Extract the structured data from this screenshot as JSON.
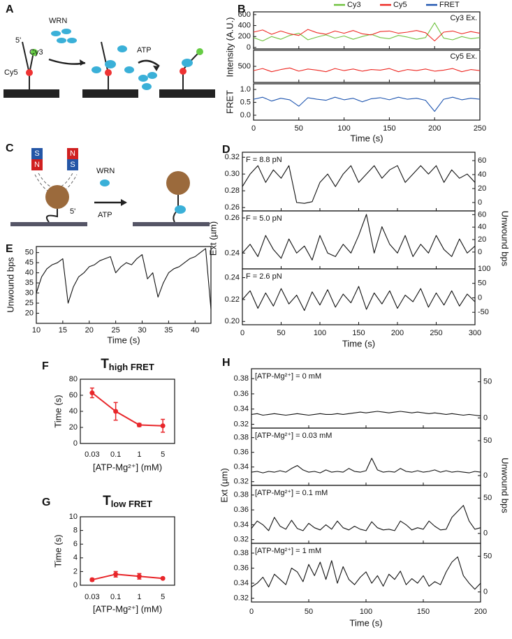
{
  "panel_labels": [
    "A",
    "B",
    "C",
    "D",
    "E",
    "F",
    "G",
    "H"
  ],
  "diagram_a": {
    "five_prime": "5'",
    "cy3": "Cy3",
    "cy5": "Cy5",
    "wrn": "WRN",
    "atp": "ATP"
  },
  "diagram_c": {
    "s1": "S",
    "n1": "N",
    "n2": "N",
    "s2": "S",
    "wrn": "WRN",
    "atp": "ATP",
    "five_prime": "5'"
  },
  "chart_data": [
    {
      "type": "line",
      "xlabel": "Time (s)",
      "x": [
        0,
        10,
        20,
        30,
        40,
        50,
        60,
        70,
        80,
        90,
        100,
        110,
        120,
        130,
        140,
        150,
        160,
        170,
        180,
        190,
        200,
        210,
        220,
        230,
        240,
        250
      ],
      "xlim": [
        0,
        250
      ],
      "xticks": [
        0,
        50,
        100,
        150,
        200,
        250
      ],
      "panels": [
        {
          "ylabel": "Intensity (A.U.)",
          "annotation": "Cy3 Ex.",
          "ylim": [
            -26,
            650
          ],
          "yticks": [
            0,
            200,
            400,
            600
          ],
          "series": [
            {
              "name": "Cy3",
              "color": "#6fc23e",
              "values": [
                180,
                120,
                200,
                150,
                220,
                260,
                140,
                190,
                230,
                170,
                210,
                150,
                200,
                240,
                180,
                160,
                220,
                190,
                150,
                180,
                450,
                170,
                140,
                200,
                160,
                180
              ]
            },
            {
              "name": "Cy5",
              "color": "#ee2a24",
              "values": [
                280,
                320,
                240,
                300,
                250,
                220,
                330,
                270,
                240,
                300,
                260,
                310,
                250,
                230,
                290,
                300,
                260,
                280,
                310,
                270,
                120,
                280,
                300,
                250,
                290,
                260
              ]
            }
          ]
        },
        {
          "annotation": "Cy5 Ex.",
          "ylim": [
            200,
            800
          ],
          "yticks": [
            500
          ],
          "series": [
            {
              "color": "#ee2a24",
              "values": [
                420,
                460,
                400,
                440,
                470,
                410,
                450,
                430,
                400,
                460,
                420,
                450,
                410,
                440,
                430,
                460,
                400,
                440,
                420,
                450,
                410,
                430,
                460,
                400,
                440,
                420
              ]
            }
          ]
        },
        {
          "ylabel": "FRET",
          "ylim": [
            -0.19,
            1.22
          ],
          "yticks": [
            {
              "value": 0,
              "label": "0.0"
            },
            0.5,
            {
              "value": 1,
              "label": "1.0"
            }
          ],
          "series": [
            {
              "name": "FRET",
              "color": "#2056b0",
              "values": [
                0.62,
                0.7,
                0.55,
                0.66,
                0.6,
                0.35,
                0.68,
                0.62,
                0.58,
                0.7,
                0.6,
                0.66,
                0.52,
                0.64,
                0.68,
                0.6,
                0.7,
                0.62,
                0.66,
                0.58,
                0.15,
                0.62,
                0.7,
                0.6,
                0.66,
                0.62
              ]
            }
          ]
        }
      ]
    },
    {
      "type": "line",
      "xlabel": "Time (s)",
      "ylabel": "Ext (µm)",
      "y2label": "Unwound bps",
      "x": [
        0,
        10,
        20,
        30,
        40,
        50,
        60,
        70,
        80,
        90,
        100,
        110,
        120,
        130,
        140,
        150,
        160,
        170,
        180,
        190,
        200,
        210,
        220,
        230,
        240,
        250,
        260,
        270,
        280,
        290,
        300
      ],
      "xlim": [
        0,
        300
      ],
      "xticks": [
        0,
        50,
        100,
        150,
        200,
        250,
        300
      ],
      "panels": [
        {
          "annotation": "F = 8.8 pN",
          "ylim": [
            0.256,
            0.326
          ],
          "yticks": [
            0.26,
            0.28,
            {
              "value": 0.3,
              "label": "0.30"
            },
            0.32
          ],
          "y2lim": [
            -12,
            72
          ],
          "y2ticks": [
            0,
            20,
            40,
            60
          ],
          "series": [
            {
              "color": "#111111",
              "values": [
                0.285,
                0.3,
                0.31,
                0.29,
                0.305,
                0.295,
                0.31,
                0.266,
                0.265,
                0.267,
                0.29,
                0.3,
                0.285,
                0.3,
                0.31,
                0.29,
                0.3,
                0.31,
                0.295,
                0.305,
                0.31,
                0.29,
                0.3,
                0.31,
                0.3,
                0.31,
                0.29,
                0.305,
                0.295,
                0.3,
                0.29
              ]
            }
          ]
        },
        {
          "annotation": "F = 5.0 pN",
          "ylim": [
            0.231,
            0.264
          ],
          "yticks": [
            0.24,
            0.26
          ],
          "y2lim": [
            -27,
            66
          ],
          "y2ticks": [
            0,
            20,
            40,
            60
          ],
          "series": [
            {
              "color": "#111111",
              "values": [
                0.24,
                0.245,
                0.238,
                0.25,
                0.242,
                0.237,
                0.248,
                0.24,
                0.244,
                0.236,
                0.25,
                0.24,
                0.238,
                0.245,
                0.24,
                0.25,
                0.262,
                0.24,
                0.255,
                0.245,
                0.24,
                0.25,
                0.238,
                0.245,
                0.24,
                0.25,
                0.242,
                0.238,
                0.248,
                0.24,
                0.244
              ]
            }
          ]
        },
        {
          "annotation": "F = 2.6 pN",
          "ylim": [
            0.197,
            0.248
          ],
          "yticks": [
            {
              "value": 0.2,
              "label": "0.20"
            },
            0.22,
            0.24
          ],
          "y2lim": [
            -93,
            100
          ],
          "y2ticks": [
            -50,
            0,
            50,
            100
          ],
          "series": [
            {
              "color": "#111111",
              "values": [
                0.22,
                0.228,
                0.212,
                0.226,
                0.214,
                0.23,
                0.216,
                0.224,
                0.21,
                0.227,
                0.215,
                0.229,
                0.213,
                0.225,
                0.217,
                0.232,
                0.211,
                0.226,
                0.216,
                0.228,
                0.212,
                0.224,
                0.218,
                0.23,
                0.213,
                0.226,
                0.215,
                0.228,
                0.214,
                0.225,
                0.218
              ]
            }
          ]
        }
      ]
    },
    {
      "type": "line",
      "xlabel": "Time (s)",
      "ylabel": "Unwound bps",
      "x": [
        10,
        11,
        12,
        13,
        14,
        15,
        16,
        17,
        18,
        19,
        20,
        21,
        22,
        23,
        24,
        25,
        26,
        27,
        28,
        29,
        30,
        31,
        32,
        33,
        34,
        35,
        36,
        37,
        38,
        39,
        40,
        41,
        42,
        43
      ],
      "xlim": [
        10,
        43
      ],
      "xticks": [
        10,
        15,
        20,
        25,
        30,
        35,
        40
      ],
      "panels": [
        {
          "ylim": [
            15,
            53
          ],
          "yticks": [
            20,
            25,
            30,
            35,
            40,
            45,
            50
          ],
          "series": [
            {
              "color": "#111111",
              "values": [
                30,
                38,
                42,
                44,
                45,
                47,
                25,
                33,
                38,
                40,
                43,
                44,
                46,
                47,
                48,
                40,
                43,
                45,
                44,
                47,
                49,
                37,
                40,
                28,
                35,
                40,
                42,
                43,
                45,
                47,
                48,
                50,
                52,
                22
              ]
            }
          ]
        }
      ]
    },
    {
      "type": "line",
      "title": "T",
      "title_sub": "high FRET",
      "xlabel": "[ATP-Mg²⁺] (mM)",
      "ylabel": "Time (s)",
      "categories": [
        "0.03",
        "0.1",
        "1",
        "5"
      ],
      "panels": [
        {
          "ylim": [
            0,
            80
          ],
          "yticks": [
            0,
            20,
            40,
            60,
            80
          ],
          "series": [
            {
              "color": "#e8262a",
              "values": [
                63,
                40,
                23,
                22
              ],
              "errors": [
                6,
                11,
                2,
                8
              ]
            }
          ]
        }
      ]
    },
    {
      "type": "line",
      "title": "T",
      "title_sub": "low FRET",
      "xlabel": "[ATP-Mg²⁺] (mM)",
      "ylabel": "Time (s)",
      "categories": [
        "0.03",
        "0.1",
        "1",
        "5"
      ],
      "panels": [
        {
          "ylim": [
            0,
            10
          ],
          "yticks": [
            0,
            2,
            4,
            6,
            8,
            10
          ],
          "series": [
            {
              "color": "#e8262a",
              "values": [
                0.8,
                1.6,
                1.3,
                1.0
              ],
              "errors": [
                0.2,
                0.4,
                0.4,
                0.1
              ]
            }
          ]
        }
      ]
    },
    {
      "type": "line",
      "xlabel": "Time (s)",
      "ylabel": "Ext (µm)",
      "y2label": "Unwound bps",
      "x": [
        0,
        5,
        10,
        15,
        20,
        25,
        30,
        35,
        40,
        45,
        50,
        55,
        60,
        65,
        70,
        75,
        80,
        85,
        90,
        95,
        100,
        105,
        110,
        115,
        120,
        125,
        130,
        135,
        140,
        145,
        150,
        155,
        160,
        165,
        170,
        175,
        180,
        185,
        190,
        195,
        200
      ],
      "xlim": [
        0,
        200
      ],
      "xticks": [
        0,
        50,
        100,
        150,
        200
      ],
      "panels": [
        {
          "annotation": "[ATP-Mg²⁺] = 0 mM",
          "ylim": [
            0.315,
            0.393
          ],
          "yticks": [
            0.32,
            0.34,
            0.36,
            0.38
          ],
          "y2lim": [
            -14,
            68
          ],
          "y2ticks": [
            0,
            50
          ],
          "series": [
            {
              "color": "#111111",
              "values": [
                0.333,
                0.334,
                0.332,
                0.333,
                0.334,
                0.333,
                0.332,
                0.333,
                0.334,
                0.333,
                0.332,
                0.333,
                0.334,
                0.333,
                0.333,
                0.334,
                0.333,
                0.334,
                0.335,
                0.336,
                0.335,
                0.336,
                0.337,
                0.336,
                0.335,
                0.336,
                0.337,
                0.336,
                0.335,
                0.336,
                0.335,
                0.334,
                0.335,
                0.334,
                0.333,
                0.334,
                0.333,
                0.332,
                0.333,
                0.332,
                0.331
              ]
            }
          ]
        },
        {
          "annotation": "[ATP-Mg²⁺] = 0.03 mM",
          "ylim": [
            0.315,
            0.393
          ],
          "yticks": [
            0.32,
            0.34,
            0.36,
            0.38
          ],
          "y2lim": [
            -14,
            68
          ],
          "y2ticks": [
            0,
            50
          ],
          "series": [
            {
              "color": "#111111",
              "values": [
                0.333,
                0.334,
                0.332,
                0.334,
                0.333,
                0.335,
                0.333,
                0.338,
                0.342,
                0.336,
                0.333,
                0.334,
                0.332,
                0.336,
                0.333,
                0.334,
                0.333,
                0.338,
                0.334,
                0.333,
                0.335,
                0.352,
                0.336,
                0.333,
                0.334,
                0.333,
                0.338,
                0.334,
                0.333,
                0.335,
                0.333,
                0.334,
                0.336,
                0.333,
                0.335,
                0.333,
                0.334,
                0.333,
                0.332,
                0.334,
                0.333
              ]
            }
          ]
        },
        {
          "annotation": "[ATP-Mg²⁺] = 0.1 mM",
          "ylim": [
            0.315,
            0.393
          ],
          "yticks": [
            0.32,
            0.34,
            0.36,
            0.38
          ],
          "y2lim": [
            -14,
            68
          ],
          "y2ticks": [
            0,
            50
          ],
          "series": [
            {
              "color": "#111111",
              "values": [
                0.335,
                0.345,
                0.34,
                0.332,
                0.35,
                0.338,
                0.334,
                0.346,
                0.335,
                0.332,
                0.342,
                0.336,
                0.333,
                0.34,
                0.334,
                0.345,
                0.336,
                0.333,
                0.338,
                0.334,
                0.332,
                0.344,
                0.336,
                0.333,
                0.334,
                0.332,
                0.345,
                0.34,
                0.333,
                0.336,
                0.334,
                0.345,
                0.338,
                0.333,
                0.334,
                0.35,
                0.358,
                0.366,
                0.345,
                0.334,
                0.336
              ]
            }
          ]
        },
        {
          "annotation": "[ATP-Mg²⁺] = 1 mM",
          "ylim": [
            0.315,
            0.393
          ],
          "yticks": [
            0.32,
            0.34,
            0.36,
            0.38
          ],
          "y2lim": [
            -14,
            68
          ],
          "y2ticks": [
            0,
            50
          ],
          "series": [
            {
              "color": "#111111",
              "values": [
                0.335,
                0.34,
                0.348,
                0.335,
                0.352,
                0.345,
                0.338,
                0.36,
                0.355,
                0.342,
                0.365,
                0.35,
                0.368,
                0.345,
                0.37,
                0.34,
                0.362,
                0.345,
                0.338,
                0.348,
                0.355,
                0.34,
                0.35,
                0.336,
                0.352,
                0.345,
                0.356,
                0.338,
                0.346,
                0.34,
                0.35,
                0.336,
                0.342,
                0.338,
                0.355,
                0.368,
                0.375,
                0.35,
                0.34,
                0.332,
                0.34
              ]
            }
          ]
        }
      ]
    }
  ]
}
